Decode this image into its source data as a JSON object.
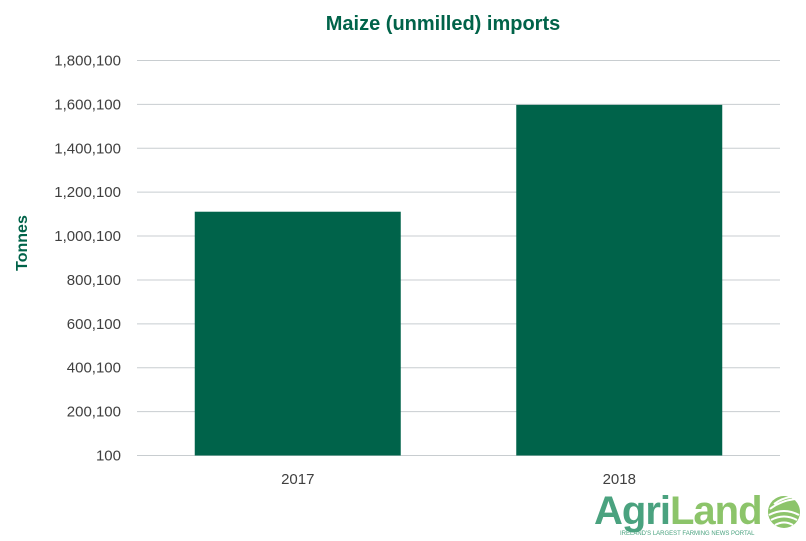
{
  "chart_data": {
    "type": "bar",
    "title": "Maize (unmilled) imports",
    "xlabel": "",
    "ylabel": "Tonnes",
    "categories": [
      "2017",
      "2018"
    ],
    "values": [
      1111000,
      1598000
    ],
    "ylim": [
      100,
      1800100
    ],
    "yticks": [
      100,
      200100,
      400100,
      600100,
      800100,
      1000100,
      1200100,
      1400100,
      1600100,
      1800100
    ],
    "ytick_labels": [
      "100",
      "200,100",
      "400,100",
      "600,100",
      "800,100",
      "1,000,100",
      "1,200,100",
      "1,400,100",
      "1,600,100",
      "1,800,100"
    ],
    "grid": true,
    "bar_color": "#00634a",
    "grid_color": "#c8cdd0"
  },
  "logo": {
    "part1": "Agri",
    "part2": "Land",
    "tagline": "IRELAND'S LARGEST FARMING NEWS PORTAL"
  }
}
